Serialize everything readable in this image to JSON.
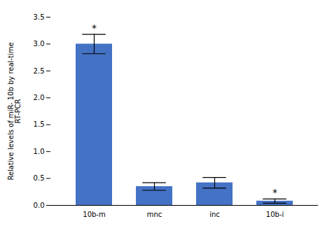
{
  "chart_data": {
    "type": "bar",
    "categories": [
      "10b-m",
      "mnc",
      "inc",
      "10b-i"
    ],
    "values": [
      3.0,
      0.35,
      0.42,
      0.08
    ],
    "errors": [
      0.18,
      0.07,
      0.1,
      0.04
    ],
    "color": "#4472C4",
    "ylabel": "Relative levels of miR- 10b by real-time\nRT-PCR",
    "ylim": [
      0,
      3.5
    ],
    "yticks": [
      0,
      0.5,
      1,
      1.5,
      2,
      2.5,
      3,
      3.5
    ],
    "annotations": [
      {
        "category": "10b-m",
        "text": "*"
      },
      {
        "category": "10b-i",
        "text": "*"
      }
    ],
    "grid": false
  }
}
